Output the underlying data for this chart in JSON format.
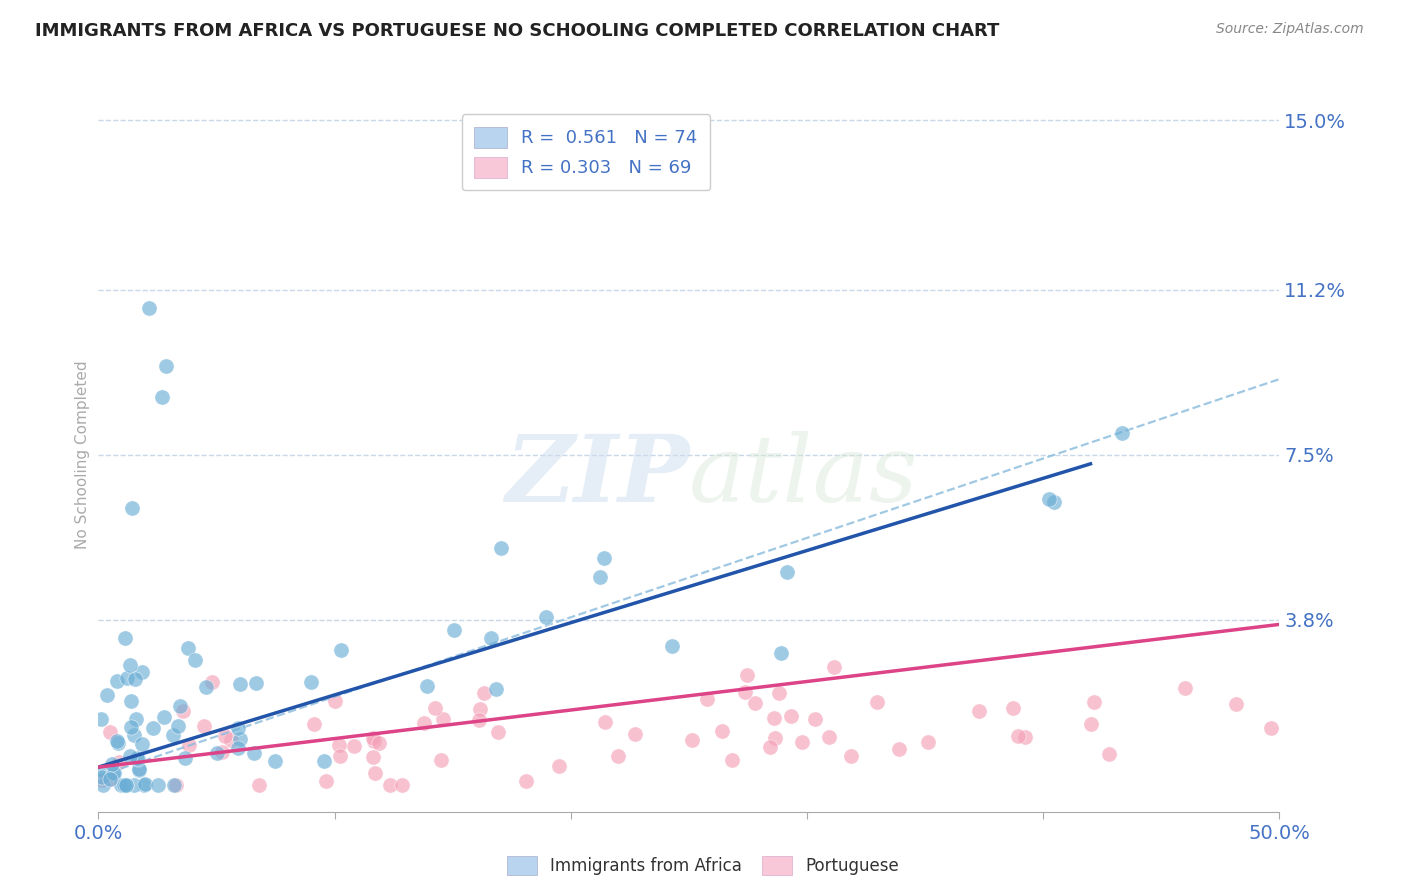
{
  "title": "IMMIGRANTS FROM AFRICA VS PORTUGUESE NO SCHOOLING COMPLETED CORRELATION CHART",
  "source": "Source: ZipAtlas.com",
  "ylabel": "No Schooling Completed",
  "xlim": [
    0.0,
    0.5
  ],
  "ylim": [
    -0.005,
    0.155
  ],
  "yticks": [
    0.0,
    0.038,
    0.075,
    0.112,
    0.15
  ],
  "ytick_labels": [
    "",
    "3.8%",
    "7.5%",
    "11.2%",
    "15.0%"
  ],
  "xticks": [
    0.0,
    0.1,
    0.2,
    0.3,
    0.4,
    0.5
  ],
  "xtick_labels": [
    "0.0%",
    "",
    "",
    "",
    "",
    "50.0%"
  ],
  "legend_entries": [
    {
      "label": "R =  0.561   N = 74",
      "color": "#a8c4e0"
    },
    {
      "label": "R = 0.303   N = 69",
      "color": "#f4b8c8"
    }
  ],
  "series1_color": "#6baed6",
  "series2_color": "#f4a0b8",
  "trendline1_color": "#2255aa",
  "trendline2_color": "#dd4488",
  "dashed_line_color": "#88bbdd",
  "background_color": "#ffffff",
  "grid_color": "#c8d8e8",
  "title_color": "#222222",
  "tick_label_color": "#4472c4",
  "watermark_text": "ZIPatlas"
}
